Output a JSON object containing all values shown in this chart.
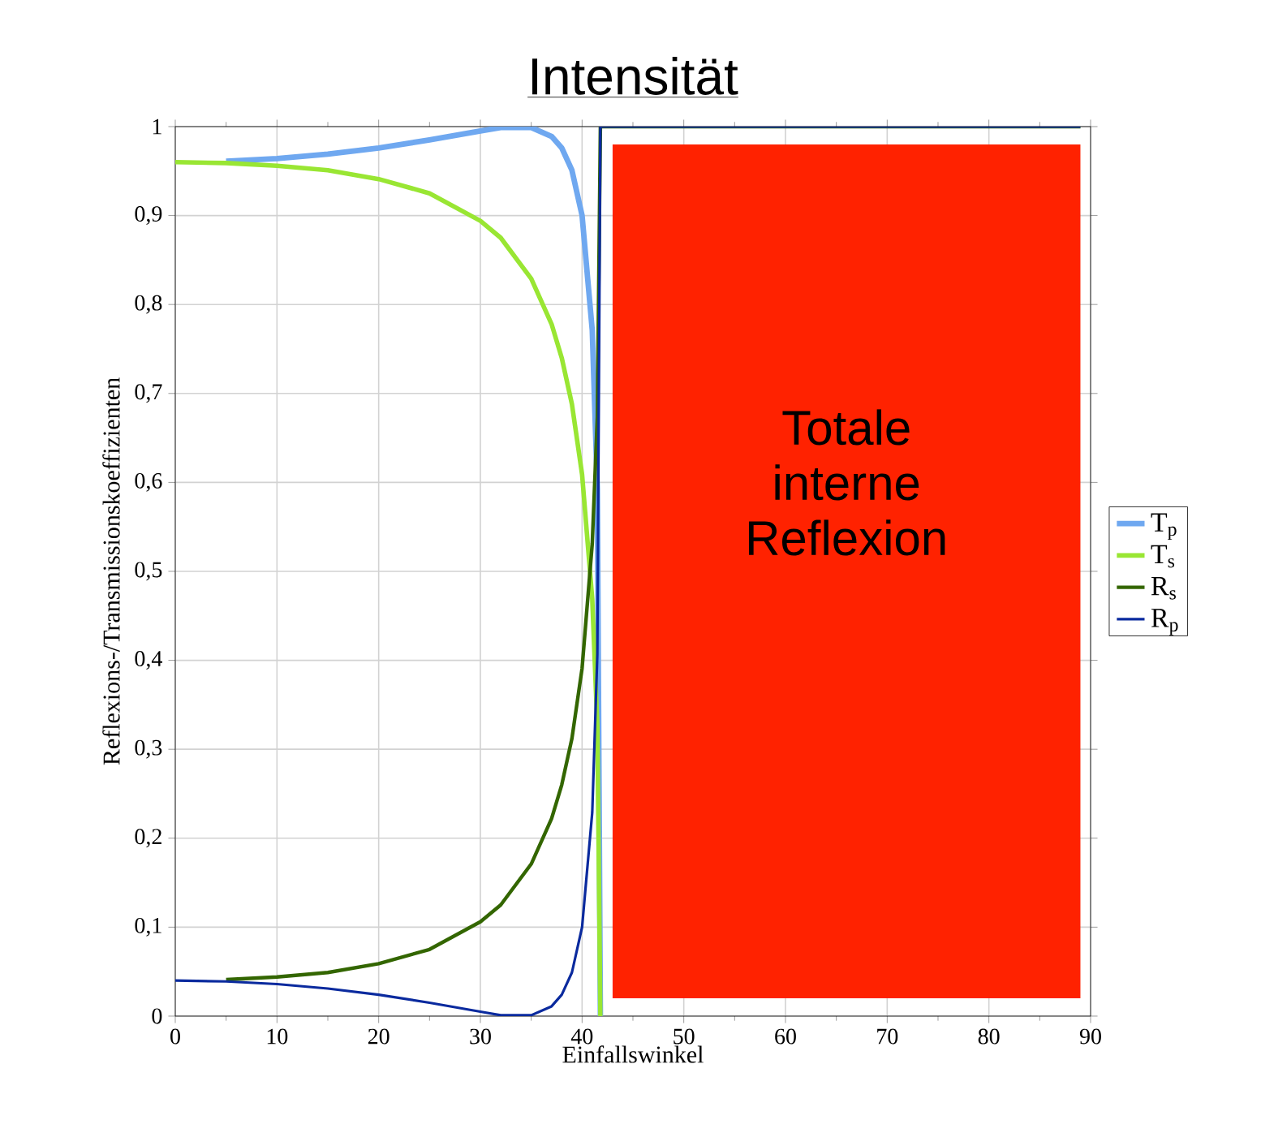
{
  "chart_data": {
    "type": "line",
    "title": "Intensität",
    "xlabel": "Einfallswinkel",
    "ylabel": "Reflexions-/Transmissionskoeffizienten",
    "xlim": [
      0,
      90
    ],
    "xticks": [
      0,
      10,
      20,
      30,
      40,
      50,
      60,
      70,
      80,
      90
    ],
    "ylim": [
      0,
      1
    ],
    "yticks": [
      0,
      {
        "value": 0.1,
        "label": "0,1"
      },
      {
        "value": 0.2,
        "label": "0,2"
      },
      {
        "value": 0.3,
        "label": "0,3"
      },
      {
        "value": 0.4,
        "label": "0,4"
      },
      {
        "value": 0.5,
        "label": "0,5"
      },
      {
        "value": 0.6,
        "label": "0,6"
      },
      {
        "value": 0.7,
        "label": "0,7"
      },
      {
        "value": 0.8,
        "label": "0,8"
      },
      {
        "value": 0.9,
        "label": "0,9"
      },
      1
    ],
    "grid": true,
    "legend": "right",
    "line_style": "solid",
    "marker": "none",
    "bands": [
      {
        "axis": "x",
        "from": 43,
        "to": 89,
        "label": "Totale interne Reflexion",
        "color": "#ff2200"
      }
    ],
    "series": [
      {
        "name": "T$_{p}$",
        "color": "#6fa8f0",
        "x": [
          5,
          10,
          15,
          20,
          25,
          30,
          32,
          35,
          37,
          38,
          39,
          40,
          41,
          41.5,
          41.8
        ],
        "values": [
          0.961,
          0.964,
          0.969,
          0.976,
          0.985,
          0.995,
          0.999,
          0.999,
          0.989,
          0.976,
          0.951,
          0.9,
          0.771,
          0.593,
          0
        ]
      },
      {
        "name": "T$_{s}$",
        "color": "#99e633",
        "x": [
          0,
          5,
          10,
          15,
          20,
          25,
          30,
          32,
          35,
          37,
          38,
          39,
          40,
          41,
          41.5,
          41.8
        ],
        "values": [
          0.96,
          0.959,
          0.956,
          0.951,
          0.941,
          0.925,
          0.894,
          0.875,
          0.829,
          0.778,
          0.74,
          0.688,
          0.609,
          0.469,
          0.326,
          0
        ]
      },
      {
        "name": "R$_{s}$",
        "color": "#336600",
        "x": [
          5,
          10,
          15,
          20,
          25,
          30,
          32,
          35,
          37,
          38,
          39,
          40,
          41,
          41.5,
          41.8,
          89
        ],
        "values": [
          0.041,
          0.044,
          0.049,
          0.059,
          0.075,
          0.106,
          0.125,
          0.171,
          0.222,
          0.26,
          0.312,
          0.391,
          0.531,
          0.674,
          1,
          1
        ]
      },
      {
        "name": "R$_{p}$",
        "color": "#0a2a9e",
        "x": [
          0,
          5,
          10,
          15,
          20,
          25,
          30,
          32,
          35,
          37,
          38,
          39,
          40,
          41,
          41.5,
          41.8,
          89
        ],
        "values": [
          0.04,
          0.039,
          0.036,
          0.031,
          0.024,
          0.015,
          0.005,
          0.001,
          0.001,
          0.011,
          0.024,
          0.049,
          0.1,
          0.229,
          0.407,
          1,
          1
        ]
      }
    ]
  }
}
